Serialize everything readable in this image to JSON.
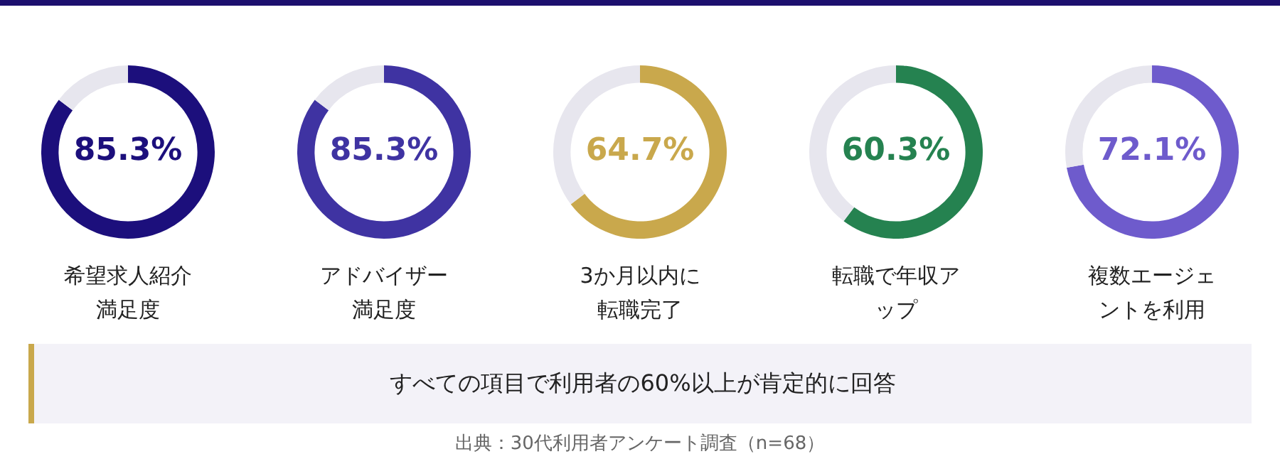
{
  "chart_data": [
    {
      "type": "donut",
      "title": "希望求人紹介満足度",
      "categories": [
        null,
        null
      ],
      "values": [
        85.3,
        14.7
      ],
      "colors": [
        "#1c0f7c",
        "#e7e6ee"
      ],
      "value_labels": [
        "85.3%",
        null
      ]
    },
    {
      "type": "donut",
      "title": "アドバイザー満足度",
      "categories": [
        null,
        null
      ],
      "values": [
        85.3,
        14.7
      ],
      "colors": [
        "#3f33a2",
        "#e7e6ee"
      ],
      "value_labels": [
        "85.3%",
        null
      ]
    },
    {
      "type": "donut",
      "title": "3か月以内に転職完了",
      "categories": [
        null,
        null
      ],
      "values": [
        64.7,
        35.3
      ],
      "colors": [
        "#c9a84c",
        "#e7e6ee"
      ],
      "value_labels": [
        "64.7%",
        null
      ]
    },
    {
      "type": "donut",
      "title": "転職で年収アップ",
      "categories": [
        null,
        null
      ],
      "values": [
        60.3,
        39.7
      ],
      "colors": [
        "#258250",
        "#e7e6ee"
      ],
      "value_labels": [
        "60.3%",
        null
      ]
    },
    {
      "type": "donut",
      "title": "複数エージェントを利用",
      "categories": [
        null,
        null
      ],
      "values": [
        72.1,
        27.9
      ],
      "colors": [
        "#6e5bcc",
        "#e7e6ee"
      ],
      "value_labels": [
        "72.1%",
        null
      ]
    },
    {
      "type": "other",
      "annotations": [
        "すべての項目で利用者の60%以上が肯定的に回答",
        "出典：30代利用者アンケート調査（n=68）"
      ]
    }
  ]
}
